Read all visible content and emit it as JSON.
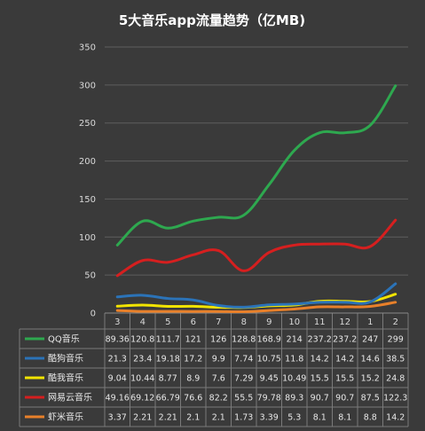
{
  "chart_data": {
    "type": "line",
    "title": "5大音乐app流量趋势（亿MB)",
    "categories": [
      "3",
      "4",
      "5",
      "6",
      "7",
      "8",
      "9",
      "10",
      "11",
      "12",
      "1",
      "2"
    ],
    "ylim": [
      0,
      350
    ],
    "yticks": [
      0,
      50,
      100,
      150,
      200,
      250,
      300,
      350
    ],
    "grid": true,
    "legend": "table-bottom",
    "series": [
      {
        "name": "QQ音乐",
        "color": "#2ea84f",
        "values": [
          89.36,
          120.8,
          111.7,
          121,
          126,
          128.8,
          168.9,
          214,
          237.2,
          237.2,
          247,
          299
        ],
        "labels": [
          "89.36",
          "120.8",
          "111.7",
          "121",
          "126",
          "128.8",
          "168.9",
          "214",
          "237.2",
          "237.2",
          "247",
          "299"
        ]
      },
      {
        "name": "酷狗音乐",
        "color": "#2b73b8",
        "values": [
          21.3,
          23.4,
          19.18,
          17.2,
          9.9,
          7.74,
          10.75,
          11.8,
          14.2,
          14.2,
          14.6,
          38.5
        ],
        "labels": [
          "21.3",
          "23.4",
          "19.18",
          "17.2",
          "9.9",
          "7.74",
          "10.75",
          "11.8",
          "14.2",
          "14.2",
          "14.6",
          "38.5"
        ]
      },
      {
        "name": "酷我音乐",
        "color": "#f2e400",
        "values": [
          9.04,
          10.44,
          8.77,
          8.9,
          7.6,
          7.29,
          9.45,
          10.49,
          15.5,
          15.5,
          15.2,
          24.8
        ],
        "labels": [
          "9.04",
          "10.44",
          "8.77",
          "8.9",
          "7.6",
          "7.29",
          "9.45",
          "10.49",
          "15.5",
          "15.5",
          "15.2",
          "24.8"
        ]
      },
      {
        "name": "网易云音乐",
        "color": "#d61f1f",
        "values": [
          49.16,
          69.12,
          66.79,
          76.6,
          82.2,
          55.5,
          79.78,
          89.3,
          90.7,
          90.7,
          87.5,
          122.3
        ],
        "labels": [
          "49.16",
          "69.12",
          "66.79",
          "76.6",
          "82.2",
          "55.5",
          "79.78",
          "89.3",
          "90.7",
          "90.7",
          "87.5",
          "122.3"
        ]
      },
      {
        "name": "虾米音乐",
        "color": "#e8802a",
        "values": [
          3.37,
          2.21,
          2.21,
          2.1,
          2.1,
          1.73,
          3.39,
          5.3,
          8.1,
          8.1,
          8.8,
          14.2
        ],
        "labels": [
          "3.37",
          "2.21",
          "2.21",
          "2.1",
          "2.1",
          "1.73",
          "3.39",
          "5.3",
          "8.1",
          "8.1",
          "8.8",
          "14.2"
        ]
      }
    ]
  }
}
